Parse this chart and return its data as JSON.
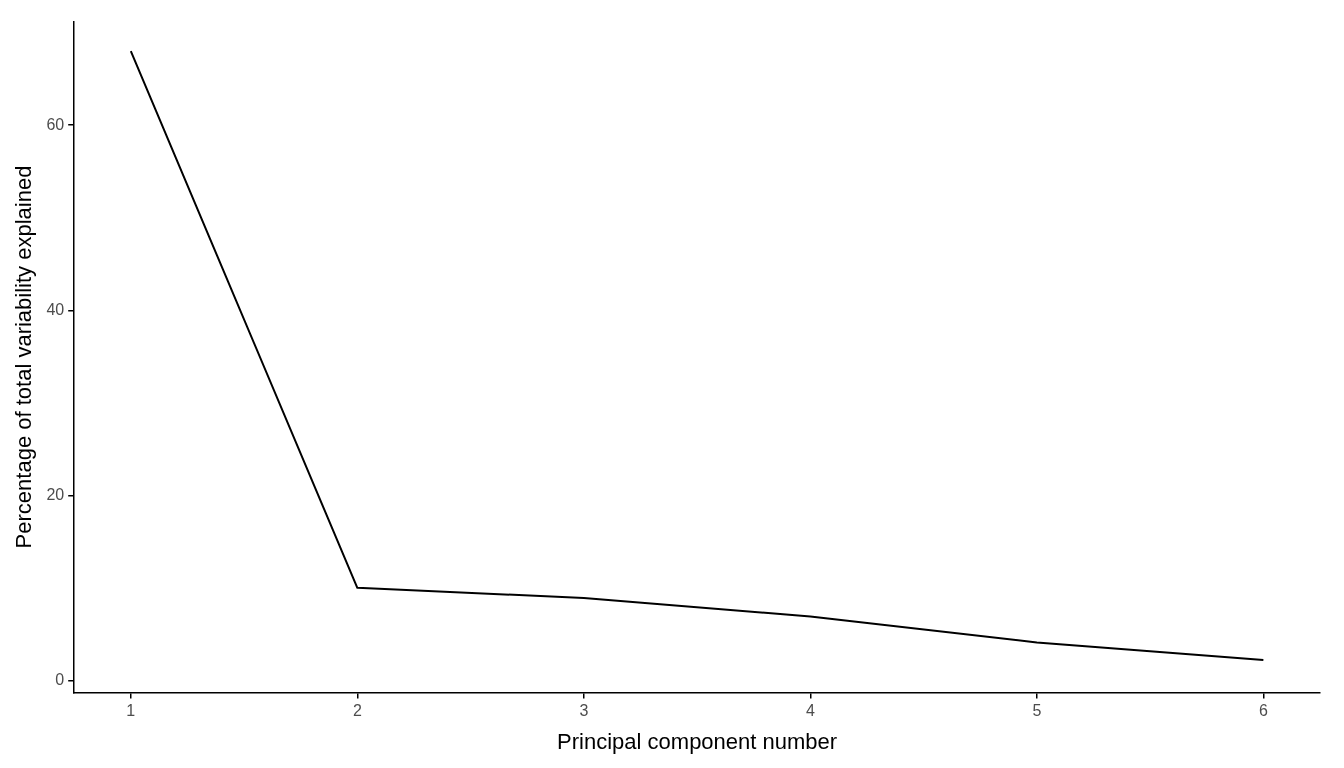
{
  "chart_data": {
    "type": "line",
    "xlabel": "Principal component number",
    "ylabel": "Percentage of total variability explained",
    "x": [
      1,
      2,
      3,
      4,
      5,
      6
    ],
    "series": [
      {
        "color": "#000000",
        "values": [
          68,
          10,
          8.9,
          6.9,
          4.1,
          2.2
        ]
      }
    ],
    "xlim": [
      0.75,
      6.25
    ],
    "xticks": [
      1,
      2,
      3,
      4,
      5,
      6
    ],
    "ylim": [
      -1.3,
      71.2
    ],
    "yticks": [
      0,
      20,
      40,
      60
    ],
    "grid": false,
    "legend": false
  }
}
